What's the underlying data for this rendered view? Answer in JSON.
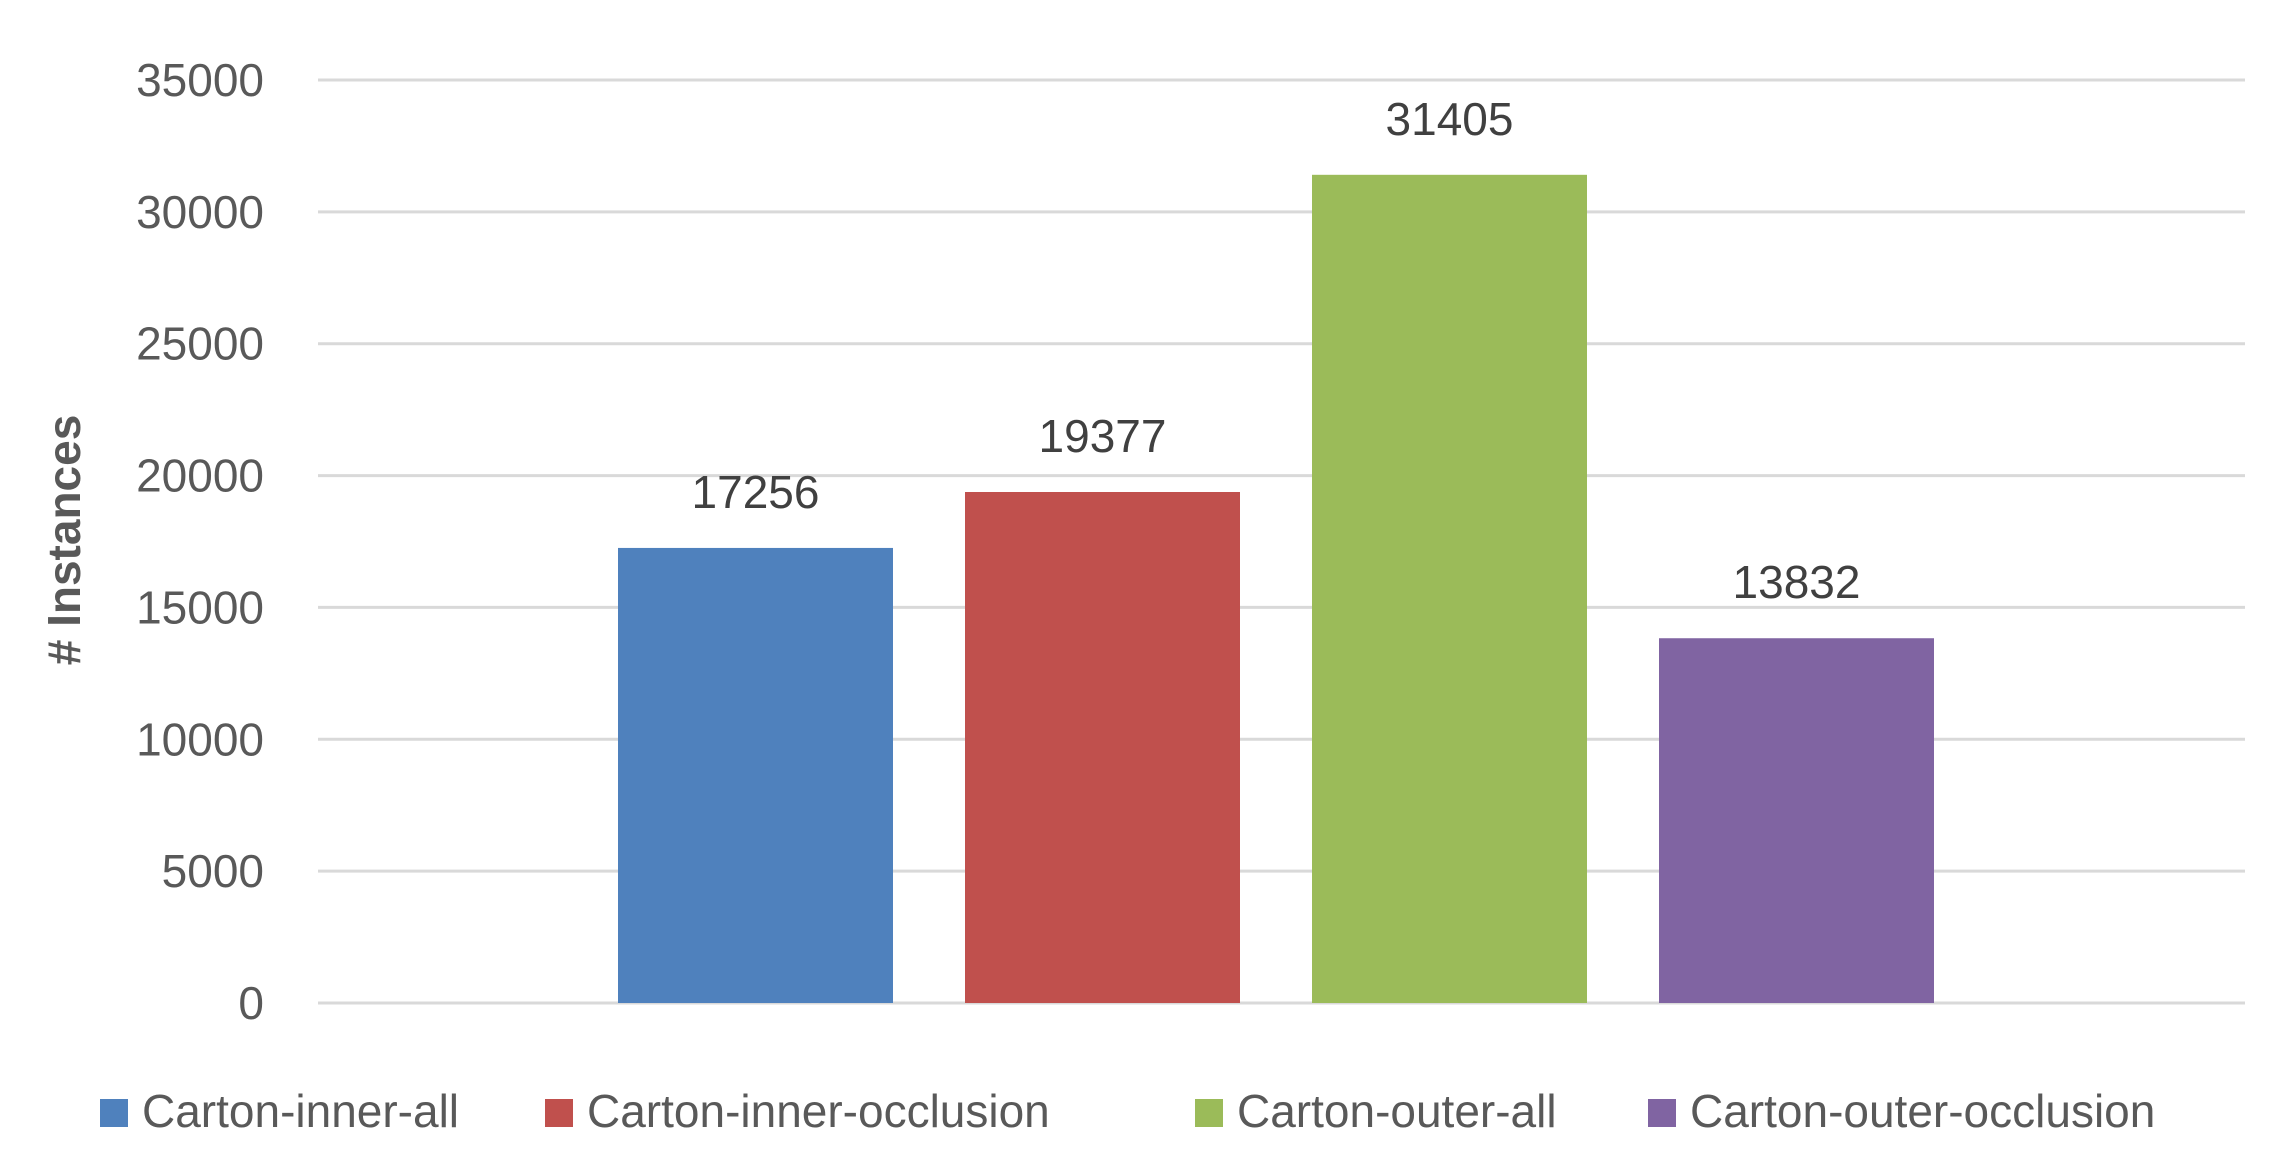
{
  "chart_data": {
    "type": "bar",
    "title": "",
    "xlabel": "",
    "ylabel": "# Instances",
    "ylim": [
      0,
      35000
    ],
    "yticks": [
      0,
      5000,
      10000,
      15000,
      20000,
      25000,
      30000,
      35000
    ],
    "grid": true,
    "legend_position": "bottom",
    "categories": [
      ""
    ],
    "series": [
      {
        "name": "Carton-inner-all",
        "values": [
          17256
        ],
        "color": "#4F81BD"
      },
      {
        "name": "Carton-inner-occlusion",
        "values": [
          19377
        ],
        "color": "#C0504D"
      },
      {
        "name": "Carton-outer-all",
        "values": [
          31405
        ],
        "color": "#9BBB59"
      },
      {
        "name": "Carton-outer-occlusion",
        "values": [
          13832
        ],
        "color": "#8064A2"
      }
    ],
    "data_labels": [
      "17256",
      "19377",
      "31405",
      "13832"
    ]
  }
}
